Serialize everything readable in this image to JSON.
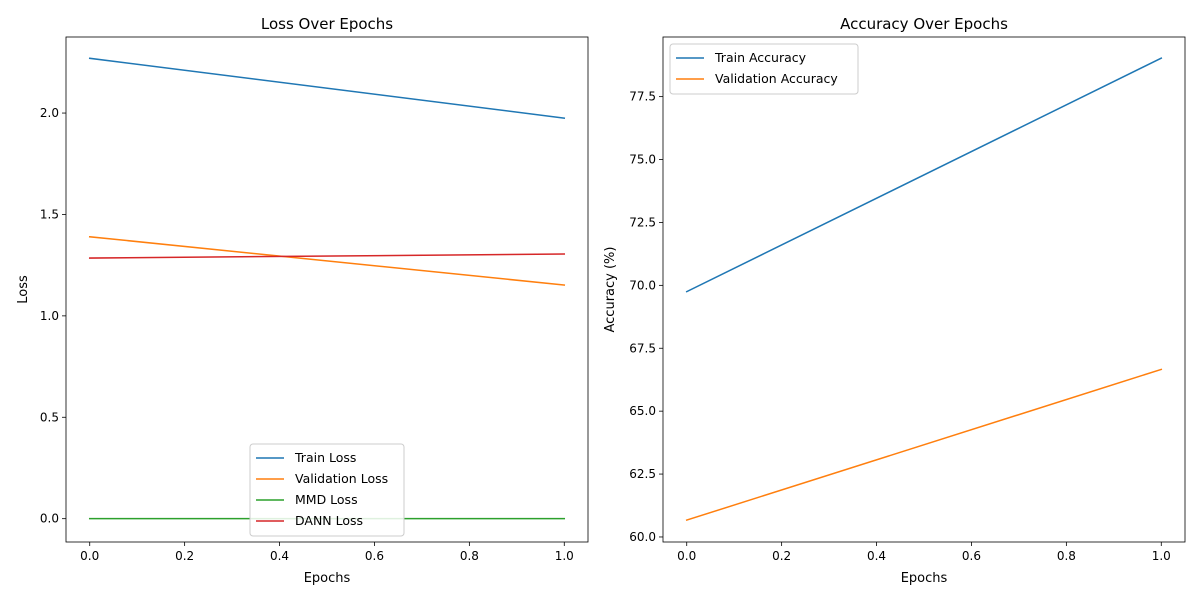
{
  "figure": {
    "background": "#ffffff"
  },
  "chart_data": [
    {
      "type": "line",
      "title": "Loss Over Epochs",
      "xlabel": "Epochs",
      "ylabel": "Loss",
      "xlim": [
        -0.05,
        1.05
      ],
      "ylim": [
        -0.115,
        2.375
      ],
      "xticks": [
        0.0,
        0.2,
        0.4,
        0.6,
        0.8,
        1.0
      ],
      "xtick_labels": [
        "0.0",
        "0.2",
        "0.4",
        "0.6",
        "0.8",
        "1.0"
      ],
      "yticks": [
        0.0,
        0.5,
        1.0,
        1.5,
        2.0
      ],
      "ytick_labels": [
        "0.0",
        "0.5",
        "1.0",
        "1.5",
        "2.0"
      ],
      "grid": false,
      "legend_position": "lower-center",
      "series": [
        {
          "name": "Train Loss",
          "color": "#1f77b4",
          "x": [
            0.0,
            1.0
          ],
          "values": [
            2.27,
            1.975
          ]
        },
        {
          "name": "Validation Loss",
          "color": "#ff7f0e",
          "x": [
            0.0,
            1.0
          ],
          "values": [
            1.39,
            1.152
          ]
        },
        {
          "name": "MMD Loss",
          "color": "#2ca02c",
          "x": [
            0.0,
            1.0
          ],
          "values": [
            0.0,
            0.0
          ]
        },
        {
          "name": "DANN Loss",
          "color": "#d62728",
          "x": [
            0.0,
            1.0
          ],
          "values": [
            1.285,
            1.305
          ]
        }
      ]
    },
    {
      "type": "line",
      "title": "Accuracy Over Epochs",
      "xlabel": "Epochs",
      "ylabel": "Accuracy (%)",
      "xlim": [
        -0.05,
        1.05
      ],
      "ylim": [
        59.8,
        79.87
      ],
      "xticks": [
        0.0,
        0.2,
        0.4,
        0.6,
        0.8,
        1.0
      ],
      "xtick_labels": [
        "0.0",
        "0.2",
        "0.4",
        "0.6",
        "0.8",
        "1.0"
      ],
      "yticks": [
        60.0,
        62.5,
        65.0,
        67.5,
        70.0,
        72.5,
        75.0,
        77.5
      ],
      "ytick_labels": [
        "60.0",
        "62.5",
        "65.0",
        "67.5",
        "70.0",
        "72.5",
        "75.0",
        "77.5"
      ],
      "grid": false,
      "legend_position": "upper-left",
      "series": [
        {
          "name": "Train Accuracy",
          "color": "#1f77b4",
          "x": [
            0.0,
            1.0
          ],
          "values": [
            69.75,
            79.03
          ]
        },
        {
          "name": "Validation Accuracy",
          "color": "#ff7f0e",
          "x": [
            0.0,
            1.0
          ],
          "values": [
            60.67,
            66.66
          ]
        }
      ]
    }
  ]
}
